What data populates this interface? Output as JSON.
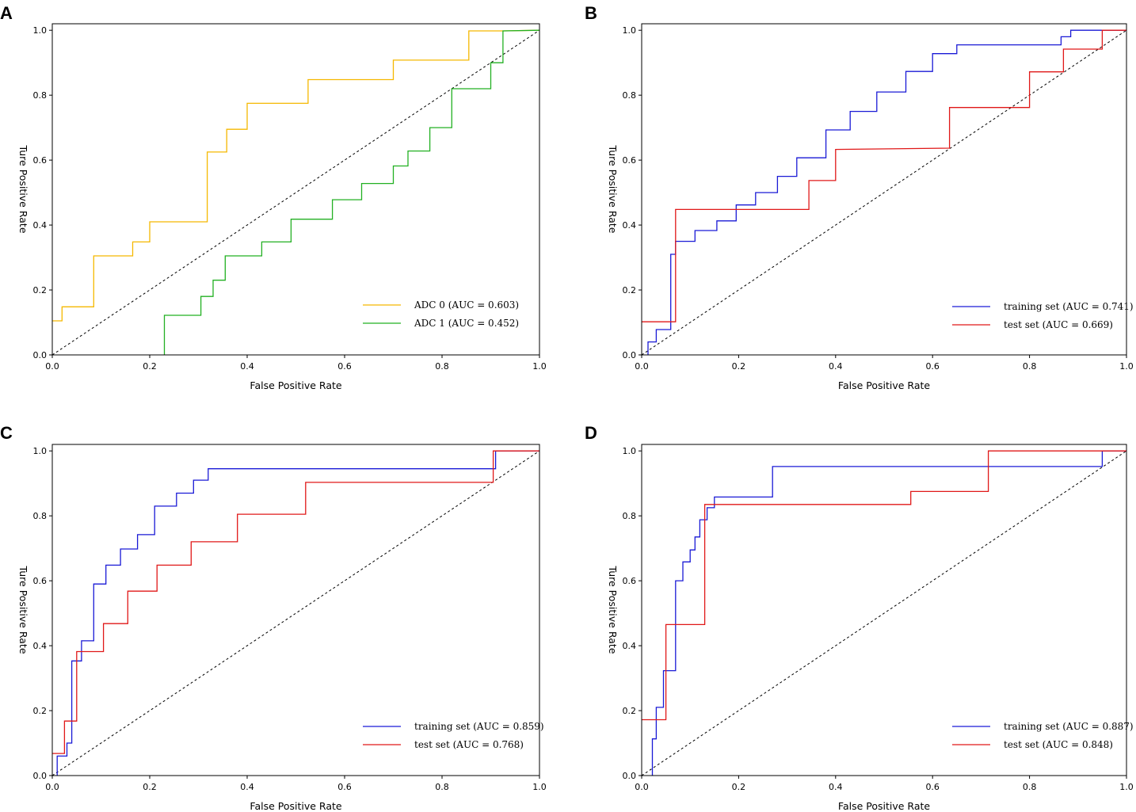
{
  "figure": {
    "axis_color": "#000000",
    "reference_line_color": "#000000"
  },
  "chart_data": [
    {
      "type": "line",
      "panel": "A",
      "xlabel": "False Positive Rate",
      "ylabel": "Ture Positive Rate",
      "xlim": [
        0.0,
        1.0
      ],
      "ylim": [
        0.0,
        1.02
      ],
      "xticks": [
        "0.0",
        "0.2",
        "0.4",
        "0.6",
        "0.8",
        "1.0"
      ],
      "yticks": [
        "0.0",
        "0.2",
        "0.4",
        "0.6",
        "0.8",
        "1.0"
      ],
      "grid": false,
      "legend_position": "lower-right",
      "diagonal_reference": true,
      "series": [
        {
          "name": "ADC 0 (AUC = 0.603)",
          "color": "#f5b800",
          "x": [
            0,
            0.02,
            0.02,
            0.085,
            0.085,
            0.165,
            0.165,
            0.2,
            0.2,
            0.27,
            0.27,
            0.318,
            0.318,
            0.358,
            0.358,
            0.4,
            0.4,
            0.525,
            0.525,
            0.7,
            0.7,
            0.855,
            0.855,
            0.925,
            0.925,
            1.0
          ],
          "y": [
            0.105,
            0.105,
            0.148,
            0.148,
            0.305,
            0.305,
            0.348,
            0.348,
            0.41,
            0.41,
            0.41,
            0.41,
            0.625,
            0.625,
            0.695,
            0.695,
            0.775,
            0.775,
            0.848,
            0.848,
            0.908,
            0.908,
            0.998,
            0.998,
            0.998,
            1.0
          ]
        },
        {
          "name": "ADC 1 (AUC = 0.452)",
          "color": "#22b022",
          "x": [
            0.23,
            0.23,
            0.305,
            0.305,
            0.33,
            0.33,
            0.355,
            0.355,
            0.43,
            0.43,
            0.49,
            0.49,
            0.575,
            0.575,
            0.635,
            0.635,
            0.7,
            0.7,
            0.73,
            0.73,
            0.775,
            0.775,
            0.82,
            0.82,
            0.9,
            0.9,
            0.925,
            0.925,
            1.0
          ],
          "y": [
            0.0,
            0.122,
            0.122,
            0.18,
            0.18,
            0.23,
            0.23,
            0.305,
            0.305,
            0.348,
            0.348,
            0.418,
            0.418,
            0.478,
            0.478,
            0.528,
            0.528,
            0.582,
            0.582,
            0.628,
            0.628,
            0.7,
            0.7,
            0.82,
            0.82,
            0.9,
            0.9,
            0.998,
            1.0
          ]
        }
      ]
    },
    {
      "type": "line",
      "panel": "B",
      "xlabel": "False Positive Rate",
      "ylabel": "Ture Positive Rate",
      "xlim": [
        0.0,
        1.0
      ],
      "ylim": [
        0.0,
        1.02
      ],
      "xticks": [
        "0.0",
        "0.2",
        "0.4",
        "0.6",
        "0.8",
        "1.0"
      ],
      "yticks": [
        "0.0",
        "0.2",
        "0.4",
        "0.6",
        "0.8",
        "1.0"
      ],
      "grid": false,
      "legend_position": "lower-right",
      "diagonal_reference": true,
      "series": [
        {
          "name": "training set (AUC = 0.741)",
          "color": "#1a1ad6",
          "x": [
            0.013,
            0.013,
            0.03,
            0.03,
            0.06,
            0.06,
            0.07,
            0.07,
            0.11,
            0.11,
            0.155,
            0.155,
            0.195,
            0.195,
            0.235,
            0.235,
            0.28,
            0.28,
            0.32,
            0.32,
            0.38,
            0.38,
            0.43,
            0.43,
            0.485,
            0.485,
            0.545,
            0.545,
            0.6,
            0.6,
            0.65,
            0.65,
            0.865,
            0.865,
            0.885,
            0.885,
            1.0
          ],
          "y": [
            0.0,
            0.04,
            0.04,
            0.078,
            0.078,
            0.31,
            0.31,
            0.35,
            0.35,
            0.383,
            0.383,
            0.413,
            0.413,
            0.462,
            0.462,
            0.5,
            0.5,
            0.55,
            0.55,
            0.607,
            0.607,
            0.693,
            0.693,
            0.75,
            0.75,
            0.81,
            0.81,
            0.873,
            0.873,
            0.928,
            0.928,
            0.955,
            0.955,
            0.98,
            0.98,
            1.0,
            1.0
          ]
        },
        {
          "name": "test set (AUC = 0.669)",
          "color": "#e01818",
          "x": [
            0,
            0.065,
            0.065,
            0.07,
            0.07,
            0.345,
            0.345,
            0.4,
            0.4,
            0.635,
            0.635,
            0.8,
            0.8,
            0.87,
            0.87,
            0.95,
            0.95,
            1.0
          ],
          "y": [
            0.102,
            0.102,
            0.102,
            0.102,
            0.448,
            0.448,
            0.537,
            0.537,
            0.633,
            0.637,
            0.762,
            0.762,
            0.872,
            0.872,
            0.942,
            0.942,
            1.0,
            1.0
          ]
        }
      ]
    },
    {
      "type": "line",
      "panel": "C",
      "xlabel": "False Positive Rate",
      "ylabel": "Ture Positive Rate",
      "xlim": [
        0.0,
        1.0
      ],
      "ylim": [
        0.0,
        1.02
      ],
      "xticks": [
        "0.0",
        "0.2",
        "0.4",
        "0.6",
        "0.8",
        "1.0"
      ],
      "yticks": [
        "0.0",
        "0.2",
        "0.4",
        "0.6",
        "0.8",
        "1.0"
      ],
      "grid": false,
      "legend_position": "lower-right",
      "diagonal_reference": true,
      "series": [
        {
          "name": "training set (AUC = 0.859)",
          "color": "#1a1ad6",
          "x": [
            0.01,
            0.01,
            0.03,
            0.03,
            0.04,
            0.04,
            0.06,
            0.06,
            0.085,
            0.085,
            0.11,
            0.11,
            0.14,
            0.14,
            0.175,
            0.175,
            0.21,
            0.21,
            0.255,
            0.255,
            0.29,
            0.29,
            0.32,
            0.32,
            0.91,
            0.91,
            1.0
          ],
          "y": [
            0.0,
            0.06,
            0.06,
            0.1,
            0.1,
            0.353,
            0.353,
            0.415,
            0.415,
            0.59,
            0.59,
            0.648,
            0.648,
            0.698,
            0.698,
            0.742,
            0.742,
            0.83,
            0.83,
            0.87,
            0.87,
            0.91,
            0.91,
            0.945,
            0.945,
            1.0,
            1.0
          ]
        },
        {
          "name": "test set (AUC = 0.768)",
          "color": "#e01818",
          "x": [
            0,
            0.025,
            0.025,
            0.05,
            0.05,
            0.105,
            0.105,
            0.155,
            0.155,
            0.215,
            0.215,
            0.285,
            0.285,
            0.38,
            0.38,
            0.52,
            0.52,
            0.905,
            0.905,
            1.0
          ],
          "y": [
            0.068,
            0.068,
            0.168,
            0.168,
            0.382,
            0.382,
            0.468,
            0.468,
            0.568,
            0.568,
            0.648,
            0.648,
            0.72,
            0.72,
            0.805,
            0.805,
            0.903,
            0.903,
            1.0,
            1.0
          ]
        }
      ]
    },
    {
      "type": "line",
      "panel": "D",
      "xlabel": "False Positive Rate",
      "ylabel": "Ture Positive Rate",
      "xlim": [
        0.0,
        1.0
      ],
      "ylim": [
        0.0,
        1.02
      ],
      "xticks": [
        "0.0",
        "0.2",
        "0.4",
        "0.6",
        "0.8",
        "1.0"
      ],
      "yticks": [
        "0.0",
        "0.2",
        "0.4",
        "0.6",
        "0.8",
        "1.0"
      ],
      "grid": false,
      "legend_position": "lower-right",
      "diagonal_reference": true,
      "series": [
        {
          "name": "training set (AUC = 0.887)",
          "color": "#1a1ad6",
          "x": [
            0.022,
            0.022,
            0.03,
            0.03,
            0.045,
            0.045,
            0.07,
            0.07,
            0.085,
            0.085,
            0.1,
            0.1,
            0.11,
            0.11,
            0.12,
            0.12,
            0.135,
            0.135,
            0.15,
            0.15,
            0.27,
            0.27,
            0.95,
            0.95,
            1.0
          ],
          "y": [
            0.0,
            0.113,
            0.113,
            0.21,
            0.21,
            0.323,
            0.323,
            0.6,
            0.6,
            0.658,
            0.658,
            0.695,
            0.695,
            0.735,
            0.735,
            0.788,
            0.788,
            0.825,
            0.825,
            0.858,
            0.858,
            0.952,
            0.952,
            1.0,
            1.0
          ]
        },
        {
          "name": "test set (AUC = 0.848)",
          "color": "#e01818",
          "x": [
            0,
            0.05,
            0.05,
            0.13,
            0.13,
            0.555,
            0.555,
            0.715,
            0.715,
            1.0
          ],
          "y": [
            0.172,
            0.172,
            0.465,
            0.465,
            0.835,
            0.835,
            0.875,
            0.875,
            1.0,
            1.0
          ]
        }
      ]
    }
  ]
}
